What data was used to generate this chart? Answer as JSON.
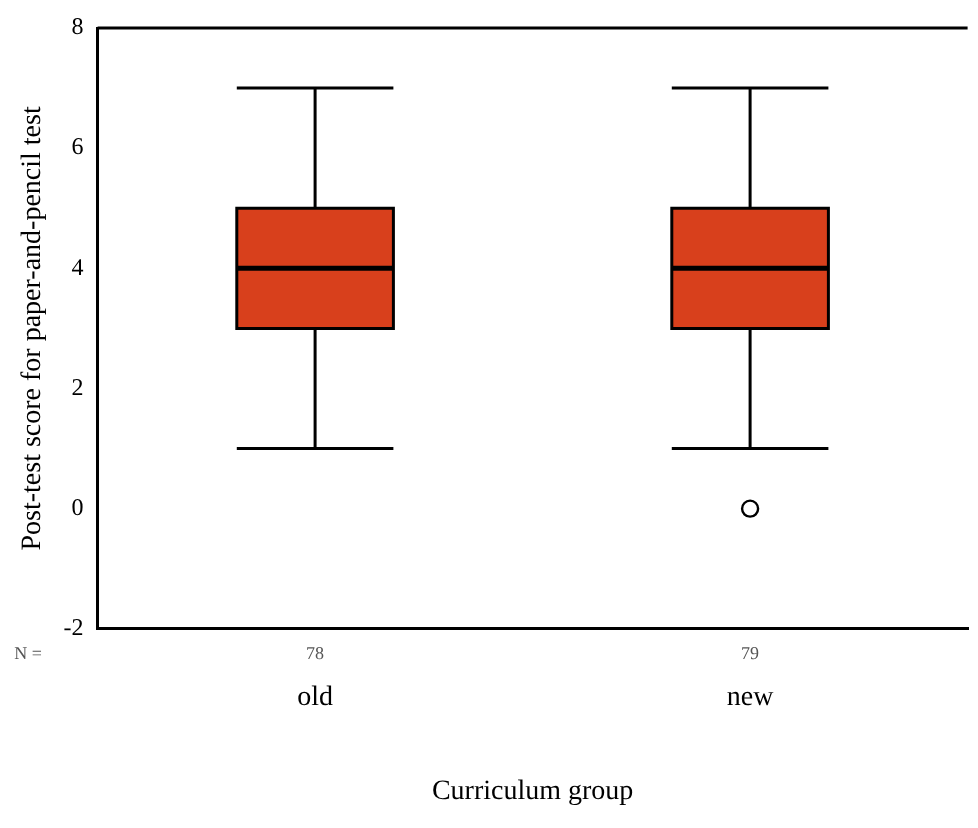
{
  "chart_data": {
    "type": "box",
    "xlabel": "Curriculum group",
    "ylabel": "Post-test score for paper-and-pencil test",
    "categories": [
      "old",
      "new"
    ],
    "boxes": [
      {
        "low": 1,
        "q1": 3,
        "median": 4,
        "q3": 5,
        "high": 7
      },
      {
        "low": 1,
        "q1": 3,
        "median": 4,
        "q3": 5,
        "high": 7,
        "outliers": [
          0
        ]
      }
    ],
    "color": "#d8401c",
    "ylim": [
      -2,
      8
    ],
    "yticks": [
      -2,
      0,
      2,
      4,
      6,
      8
    ],
    "grid": false,
    "legend": false,
    "annotations": [
      "N =",
      "78",
      "79"
    ]
  }
}
